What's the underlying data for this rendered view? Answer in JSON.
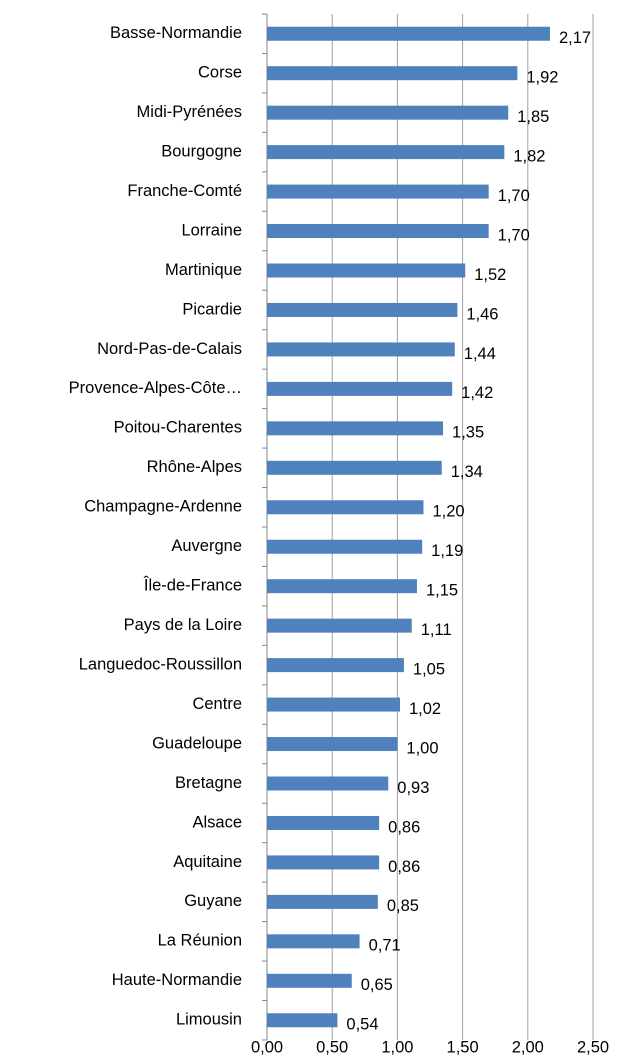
{
  "chart_data": {
    "type": "barh",
    "categories": [
      "Basse-Normandie",
      "Corse",
      "Midi-Pyrénées",
      "Bourgogne",
      "Franche-Comté",
      "Lorraine",
      "Martinique",
      "Picardie",
      "Nord-Pas-de-Calais",
      "Provence-Alpes-Côte…",
      "Poitou-Charentes",
      "Rhône-Alpes",
      "Champagne-Ardenne",
      "Auvergne",
      "Île-de-France",
      "Pays de la Loire",
      "Languedoc-Roussillon",
      "Centre",
      "Guadeloupe",
      "Bretagne",
      "Alsace",
      "Aquitaine",
      "Guyane",
      "La Réunion",
      "Haute-Normandie",
      "Limousin"
    ],
    "values": [
      2.17,
      1.92,
      1.85,
      1.82,
      1.7,
      1.7,
      1.52,
      1.46,
      1.44,
      1.42,
      1.35,
      1.34,
      1.2,
      1.19,
      1.15,
      1.11,
      1.05,
      1.02,
      1.0,
      0.93,
      0.86,
      0.86,
      0.85,
      0.71,
      0.65,
      0.54
    ],
    "value_labels": [
      "2,17",
      "1,92",
      "1,85",
      "1,82",
      "1,70",
      "1,70",
      "1,52",
      "1,46",
      "1,44",
      "1,42",
      "1,35",
      "1,34",
      "1,20",
      "1,19",
      "1,15",
      "1,11",
      "1,05",
      "1,02",
      "1,00",
      "0,93",
      "0,86",
      "0,86",
      "0,85",
      "0,71",
      "0,65",
      "0,54"
    ],
    "color": "#4f81bd",
    "xlim": [
      0,
      2.5
    ],
    "xticks": [
      {
        "value": 0,
        "label": "0,00"
      },
      {
        "value": 0.5,
        "label": "0,50"
      },
      {
        "value": 1,
        "label": "1,00"
      },
      {
        "value": 1.5,
        "label": "1,50"
      },
      {
        "value": 2,
        "label": "2,00"
      },
      {
        "value": 2.5,
        "label": "2,50"
      }
    ],
    "grid": true
  }
}
